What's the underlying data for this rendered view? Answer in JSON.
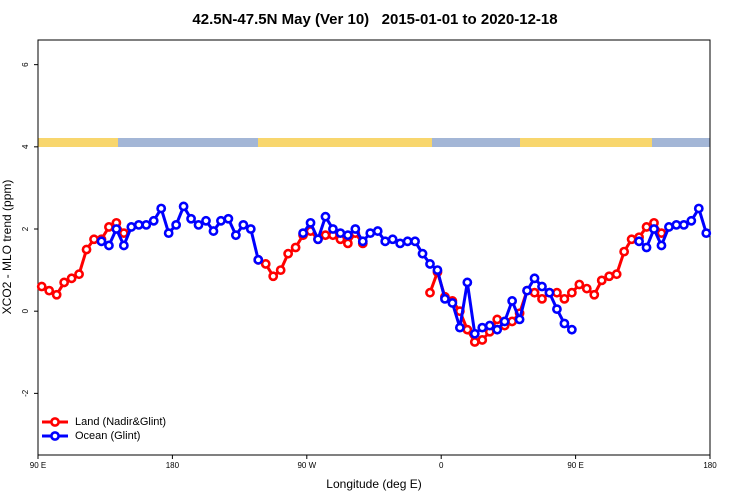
{
  "chart_data": {
    "type": "line",
    "title": "42.5N-47.5N May (Ver 10)   2015-01-01 to 2020-12-18",
    "x_label": "Longitude (deg E)",
    "y_label": "XCO2 - MLO trend (ppm)",
    "x": [
      92.5,
      97.5,
      102.5,
      107.5,
      112.5,
      117.5,
      122.5,
      127.5,
      132.5,
      137.5,
      142.5,
      147.5,
      152.5,
      157.5,
      162.5,
      167.5,
      172.5,
      177.5,
      182.5,
      187.5,
      192.5,
      197.5,
      202.5,
      207.5,
      212.5,
      217.5,
      222.5,
      227.5,
      232.5,
      237.5,
      242.5,
      247.5,
      252.5,
      257.5,
      262.5,
      267.5,
      272.5,
      277.5,
      282.5,
      287.5,
      292.5,
      297.5,
      302.5,
      307.5,
      312.5,
      317.5,
      322.5,
      327.5,
      332.5,
      337.5,
      342.5,
      347.5,
      352.5,
      357.5,
      362.5,
      367.5,
      372.5,
      377.5,
      382.5,
      387.5,
      392.5,
      397.5,
      402.5,
      407.5,
      412.5,
      417.5,
      422.5,
      427.5,
      432.5,
      437.5,
      442.5,
      447.5,
      452.5,
      457.5,
      462.5,
      467.5,
      472.5,
      477.5,
      482.5,
      487.5,
      492.5,
      497.5,
      502.5,
      507.5,
      512.5,
      517.5,
      522.5,
      527.5,
      532.5,
      537.5
    ],
    "series": [
      {
        "name": "Land (Nadir&Glint)",
        "color": "#ff0000",
        "values": [
          0.6,
          0.5,
          0.4,
          0.7,
          0.8,
          0.9,
          1.5,
          1.75,
          1.75,
          2.05,
          2.15,
          1.9,
          null,
          null,
          null,
          null,
          null,
          null,
          null,
          null,
          null,
          null,
          null,
          null,
          null,
          null,
          null,
          null,
          null,
          1.25,
          1.15,
          0.85,
          1.0,
          1.4,
          1.55,
          1.85,
          1.95,
          1.75,
          1.85,
          1.85,
          1.75,
          1.65,
          1.9,
          1.65,
          null,
          null,
          null,
          null,
          null,
          null,
          null,
          null,
          0.45,
          0.95,
          0.35,
          0.25,
          0,
          -0.45,
          -0.75,
          -0.7,
          -0.5,
          -0.2,
          -0.35,
          -0.25,
          -0.05,
          0.5,
          0.45,
          0.3,
          0.45,
          0.45,
          0.3,
          0.45,
          0.65,
          0.55,
          0.4,
          0.75,
          0.85,
          0.9,
          1.45,
          1.75,
          1.8,
          2.05,
          2.15,
          1.9,
          null,
          null,
          null,
          null,
          null,
          null
        ]
      },
      {
        "name": "Ocean (Glint)",
        "color": "#0000ff",
        "values": [
          null,
          null,
          null,
          null,
          null,
          null,
          null,
          null,
          1.7,
          1.6,
          2.0,
          1.6,
          2.05,
          2.1,
          2.1,
          2.2,
          2.5,
          1.9,
          2.1,
          2.55,
          2.25,
          2.1,
          2.2,
          1.95,
          2.2,
          2.25,
          1.85,
          2.1,
          2.0,
          1.25,
          null,
          null,
          null,
          null,
          null,
          1.9,
          2.15,
          1.75,
          2.3,
          2.0,
          1.9,
          1.85,
          2.0,
          1.7,
          1.9,
          1.95,
          1.7,
          1.75,
          1.65,
          1.7,
          1.7,
          1.4,
          1.15,
          1.0,
          0.3,
          0.2,
          -0.4,
          0.7,
          -0.55,
          -0.4,
          -0.35,
          -0.45,
          -0.25,
          0.25,
          -0.2,
          0.5,
          0.8,
          0.6,
          0.45,
          0.05,
          -0.3,
          -0.45,
          null,
          null,
          null,
          null,
          null,
          null,
          null,
          null,
          1.7,
          1.55,
          2.0,
          1.6,
          2.05,
          2.1,
          2.1,
          2.2,
          2.5,
          1.9
        ]
      }
    ],
    "xlim": [
      90,
      540
    ],
    "ylim": [
      -3.5,
      6.6
    ],
    "xticks": [
      {
        "value": 90,
        "label": "90 E"
      },
      180,
      {
        "value": 270,
        "label": "90 W"
      },
      {
        "value": 360,
        "label": "0"
      },
      {
        "value": 450,
        "label": "90 E"
      },
      {
        "value": 540,
        "label": "180"
      }
    ],
    "yticks": [
      -2,
      0,
      2,
      4,
      6
    ],
    "legend": "bottom-left"
  }
}
